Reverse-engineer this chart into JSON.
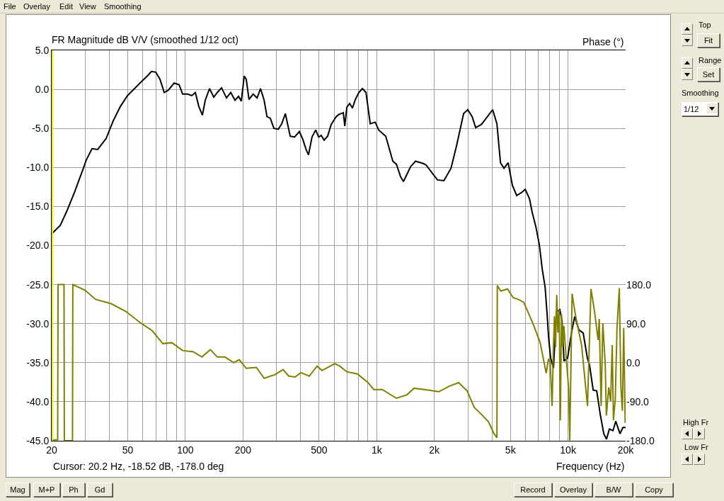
{
  "chart_data": {
    "type": "line",
    "title": "FR Magnitude dB V/V (smoothed 1/12 oct)",
    "xlabel": "Frequency (Hz)",
    "y2label": "Phase (°)",
    "annotations": [
      "Cursor: 20.2 Hz, -18.52 dB, -178.0 deg",
      "File",
      "Overlay",
      "Edit",
      "View",
      "Smoothing",
      "Top",
      "Fit",
      "Range",
      "Set",
      "Smoothing",
      "1/12",
      "High Fr",
      "Low Fr",
      "Mag",
      "M+P",
      "Ph",
      "Gd",
      "Record",
      "Overlay",
      "B/W",
      "Copy"
    ],
    "log": "x",
    "grid": true,
    "line_style": "solid",
    "marker": "none",
    "xlim": [
      20,
      20000
    ],
    "xticks": [
      20,
      {
        "value": 30,
        "label": null
      },
      {
        "value": 40,
        "label": null
      },
      50,
      {
        "value": 60,
        "label": null
      },
      {
        "value": 70,
        "label": null
      },
      {
        "value": 80,
        "label": null
      },
      {
        "value": 90,
        "label": null
      },
      100,
      200,
      {
        "value": 300,
        "label": null
      },
      {
        "value": 400,
        "label": null
      },
      500,
      {
        "value": 600,
        "label": null
      },
      {
        "value": 700,
        "label": null
      },
      {
        "value": 800,
        "label": null
      },
      {
        "value": 900,
        "label": null
      },
      {
        "value": 1000,
        "label": "1k"
      },
      {
        "value": 2000,
        "label": "2k"
      },
      {
        "value": 3000,
        "label": null
      },
      {
        "value": 4000,
        "label": null
      },
      {
        "value": 5000,
        "label": "5k"
      },
      {
        "value": 6000,
        "label": null
      },
      {
        "value": 7000,
        "label": null
      },
      {
        "value": 8000,
        "label": null
      },
      {
        "value": 9000,
        "label": null
      },
      {
        "value": 10000,
        "label": "10k"
      },
      {
        "value": 20000,
        "label": "20k"
      }
    ],
    "ylim": [
      -45,
      5
    ],
    "yticks": [
      {
        "value": 5,
        "label": "5.0"
      },
      {
        "value": 0,
        "label": "0.0"
      },
      {
        "value": -5,
        "label": "-5.0"
      },
      {
        "value": -10,
        "label": "-10.0"
      },
      {
        "value": -15,
        "label": "-15.0"
      },
      {
        "value": -20,
        "label": "-20.0"
      },
      {
        "value": -25,
        "label": "-25.0"
      },
      {
        "value": -30,
        "label": "-30.0"
      },
      {
        "value": -35,
        "label": "-35.0"
      },
      {
        "value": -40,
        "label": "-40.0"
      },
      {
        "value": -45,
        "label": "-45.0"
      }
    ],
    "y2lim": [
      -180,
      720
    ],
    "y2ticks": [
      {
        "value": 180,
        "label": "180.0"
      },
      {
        "value": 90,
        "label": "90.0"
      },
      {
        "value": 0,
        "label": "0.0"
      },
      {
        "value": -90,
        "label": "-90.0"
      },
      {
        "value": -180,
        "label": "-180.0"
      }
    ],
    "ref_lines": [
      {
        "axis": "x",
        "value": 20.2,
        "color": "#e8e800"
      }
    ],
    "series": [
      {
        "color": "#808000",
        "axis": "y2",
        "x": [
          20,
          21.5,
          21.6,
          23.2,
          23.3,
          25.7,
          25.8,
          29.9,
          33.9,
          40.9,
          48.9,
          59,
          67,
          76.2,
          85.1,
          96.7,
          110,
          122,
          135,
          147,
          161,
          179,
          191,
          208,
          235,
          258,
          278,
          293,
          324,
          347,
          375,
          401,
          444,
          488,
          518,
          604,
          641,
          698,
          793,
          901,
          965,
          1069,
          1268,
          1439,
          1567,
          1781,
          2113,
          2400,
          2682,
          2970,
          3234,
          3524,
          3835,
          4107,
          4249,
          4270,
          4450,
          4826,
          5165,
          5484,
          5870,
          6558,
          7142,
          7690,
          7910,
          8065,
          8255,
          8375,
          8490,
          8610,
          8730,
          8855,
          8990,
          9115,
          9245,
          9375,
          9510,
          9790,
          10070,
          10210,
          10500,
          10960,
          11770,
          12640,
          13180,
          13760,
          14360,
          14560,
          14890,
          15200,
          15640,
          15860,
          16320,
          16700,
          17020,
          17270,
          17660,
          18030,
          18540,
          18900,
          19230,
          19540,
          19900,
          20000
        ],
        "values": [
          -178,
          -178,
          180,
          180,
          -180,
          -180,
          180,
          167,
          146,
          136,
          118,
          90,
          74,
          44,
          46,
          28,
          25,
          13,
          30,
          13,
          13,
          0,
          7,
          -13,
          -11,
          -36,
          -31,
          -28,
          -16,
          -31,
          -33,
          -23,
          -31,
          -8,
          -18,
          -2,
          -8,
          -21,
          -26,
          -46,
          -62,
          -62,
          -82,
          -74,
          -59,
          -62,
          -67,
          -54,
          -46,
          -65,
          -103,
          -119,
          -136,
          -164,
          -173,
          178,
          165,
          170,
          150,
          146,
          139,
          90,
          47,
          -24,
          9,
          1,
          -100,
          25,
          107,
          36,
          156,
          69,
          123,
          -133,
          112,
          36,
          85,
          9,
          -57,
          -179,
          159,
          107,
          41,
          -100,
          170,
          118,
          52,
          101,
          -100,
          91,
          -2,
          -122,
          -57,
          -89,
          41,
          -133,
          -84,
          80,
          172,
          -57,
          -111,
          80,
          -139,
          -84
        ]
      },
      {
        "color": "#000000",
        "x": [
          20,
          22.2,
          24.1,
          26.3,
          28.6,
          30.4,
          32.5,
          34.8,
          38.5,
          42,
          45.7,
          49.8,
          54.2,
          59,
          62.6,
          66.5,
          70,
          73.6,
          77.5,
          81.5,
          87.3,
          92.7,
          96.7,
          102.7,
          108,
          112.7,
          117.6,
          122.7,
          127,
          133.7,
          140.7,
          146.8,
          154.5,
          164,
          172.6,
          181.7,
          189.6,
          196,
          203,
          208,
          215,
          226,
          237,
          247,
          258,
          267,
          278,
          290,
          306,
          319,
          333,
          353,
          372,
          394,
          411,
          426,
          440,
          459,
          480,
          497,
          513,
          531,
          554,
          578,
          614,
          635,
          669,
          681,
          698,
          722,
          747,
          773,
          807,
          842,
          879,
          925,
          982,
          1024,
          1115,
          1214,
          1268,
          1334,
          1380,
          1503,
          1596,
          1751,
          1813,
          2076,
          2244,
          2445,
          2615,
          2846,
          2993,
          3154,
          3290,
          3524,
          3708,
          4037,
          4249,
          4435,
          4625,
          4866,
          5120,
          5394,
          5729,
          5974,
          6284,
          6505,
          6790,
          7082,
          7330,
          7587,
          7780,
          7910,
          8110,
          8395,
          8690,
          9060,
          9300,
          9530,
          9950,
          10470,
          10840,
          11400,
          12000,
          12620,
          12960,
          13530,
          14120,
          14730,
          15380,
          15890,
          16450,
          17180,
          17750,
          18700,
          19350,
          20000
        ],
        "values": [
          -18.5,
          -17.4,
          -15.5,
          -13.2,
          -10.8,
          -9.0,
          -7.6,
          -7.7,
          -6.3,
          -4.0,
          -2.2,
          -0.8,
          0.1,
          1.0,
          1.6,
          2.3,
          2.2,
          1.3,
          -0.4,
          -0.1,
          0.8,
          0.6,
          -0.6,
          -0.6,
          -0.8,
          -0.4,
          -2.2,
          -3.3,
          -1.4,
          0.1,
          -1.0,
          -0.4,
          0.2,
          -1.1,
          -0.4,
          -1.4,
          -0.9,
          -1.5,
          1.7,
          1.3,
          -1.3,
          -0.6,
          -1.1,
          0.1,
          -1.4,
          -3.5,
          -3.7,
          -5.0,
          -5.1,
          -4.4,
          -3.1,
          -6.0,
          -6.1,
          -5.4,
          -6.4,
          -7.6,
          -8.4,
          -6.1,
          -5.2,
          -6.1,
          -5.9,
          -6.5,
          -6.0,
          -4.5,
          -3.5,
          -3.2,
          -3.0,
          -4.7,
          -2.3,
          -1.8,
          -2.4,
          -1.3,
          -0.4,
          0.1,
          -0.4,
          -4.4,
          -4.2,
          -5.2,
          -6.0,
          -9.2,
          -9.6,
          -11.2,
          -11.8,
          -9.9,
          -9.2,
          -9.5,
          -9.7,
          -11.6,
          -11.7,
          -10.1,
          -7.2,
          -3.1,
          -2.6,
          -3.5,
          -4.9,
          -4.5,
          -3.8,
          -2.6,
          -4.4,
          -9.4,
          -10.1,
          -9.4,
          -12.3,
          -13.6,
          -13.2,
          -12.8,
          -14.0,
          -15.8,
          -17.6,
          -19.9,
          -23.0,
          -25.3,
          -28.9,
          -31.7,
          -34.4,
          -35.7,
          -28.5,
          -28.2,
          -29.6,
          -34.8,
          -34.4,
          -30.9,
          -29.1,
          -30.8,
          -31.2,
          -34.4,
          -35.3,
          -38.5,
          -38.6,
          -41.6,
          -44.1,
          -44.8,
          -43.5,
          -43.7,
          -42.5,
          -44.1,
          -43.3,
          -43.3
        ]
      }
    ]
  }
}
